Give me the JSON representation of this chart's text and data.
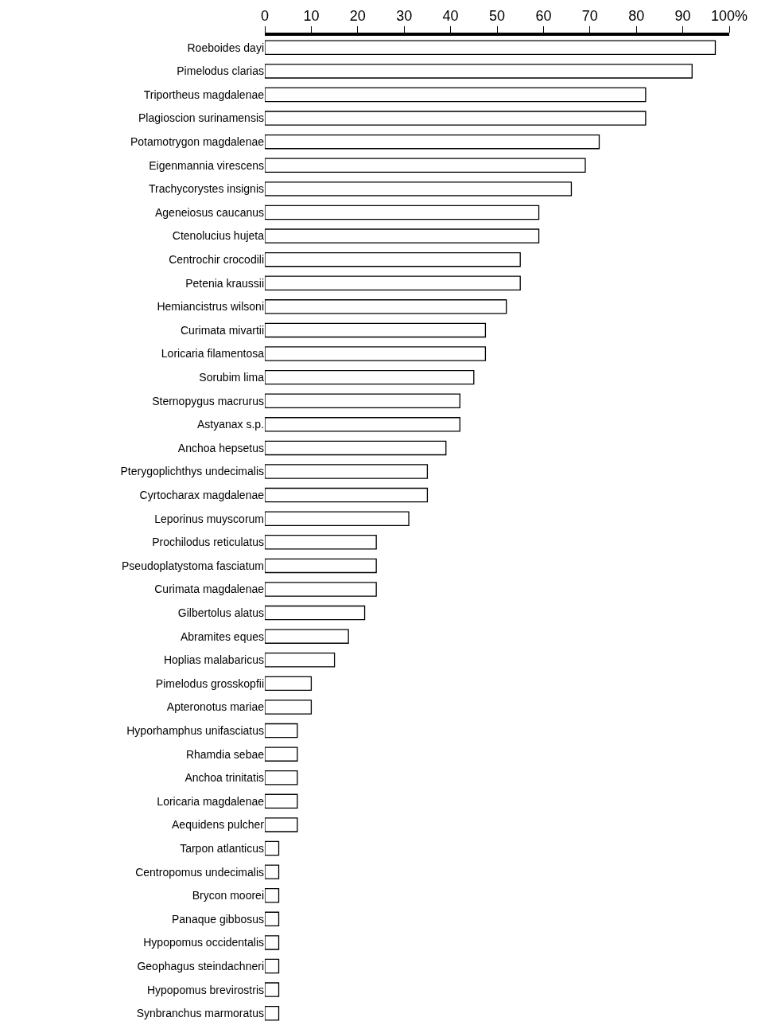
{
  "chart_data": {
    "type": "bar",
    "orientation": "horizontal",
    "color": "#ffffff",
    "categories": [
      "Roeboides dayi",
      "Pimelodus clarias",
      "Triportheus magdalenae",
      "Plagioscion surinamensis",
      "Potamotrygon magdalenae",
      "Eigenmannia virescens",
      "Trachycorystes insignis",
      "Ageneiosus caucanus",
      "Ctenolucius hujeta",
      "Centrochir crocodili",
      "Petenia kraussii",
      "Hemiancistrus wilsoni",
      "Curimata mivartii",
      "Loricaria filamentosa",
      "Sorubim lima",
      "Sternopygus macrurus",
      "Astyanax s.p.",
      "Anchoa hepsetus",
      "Pterygoplichthys undecimalis",
      "Cyrtocharax magdalenae",
      "Leporinus muyscorum",
      "Prochilodus reticulatus",
      "Pseudoplatystoma fasciatum",
      "Curimata magdalenae",
      "Gilbertolus alatus",
      "Abramites eques",
      "Hoplias malabaricus",
      "Pimelodus grosskopfii",
      "Apteronotus mariae",
      "Hyporhamphus unifasciatus",
      "Rhamdia sebae",
      "Anchoa trinitatis",
      "Loricaria magdalenae",
      "Aequidens pulcher",
      "Tarpon atlanticus",
      "Centropomus undecimalis",
      "Brycon moorei",
      "Panaque gibbosus",
      "Hypopomus occidentalis",
      "Geophagus steindachneri",
      "Hypopomus brevirostris",
      "Synbranchus marmoratus"
    ],
    "values": [
      97,
      92,
      82,
      82,
      72,
      69,
      66,
      59,
      59,
      55,
      55,
      52,
      47.5,
      47.5,
      45,
      42,
      42,
      39,
      35,
      35,
      31,
      24,
      24,
      24,
      21.5,
      18,
      15,
      10,
      10,
      7,
      7,
      7,
      7,
      7,
      3,
      3,
      3,
      3,
      3,
      3,
      3,
      3
    ],
    "xlim": [
      0,
      100
    ],
    "xticks": [
      0,
      10,
      20,
      30,
      40,
      50,
      60,
      70,
      80,
      90,
      {
        "value": 100,
        "label": "100%"
      }
    ],
    "grid": false,
    "legend": false
  }
}
